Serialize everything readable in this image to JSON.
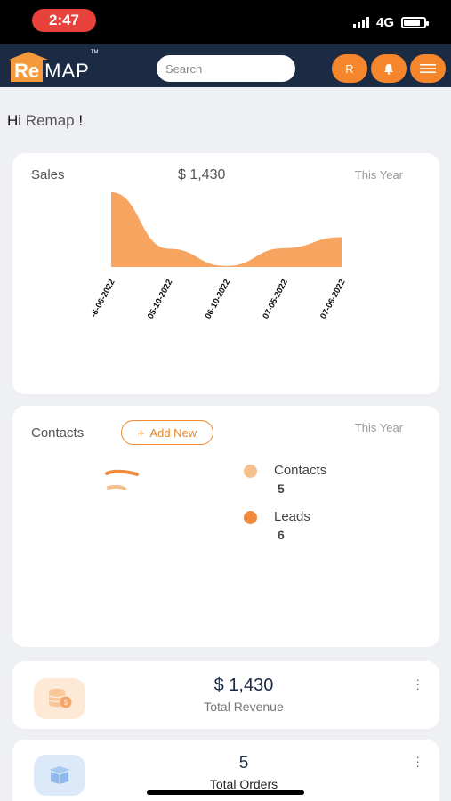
{
  "status_bar": {
    "time": "2:47",
    "network": "4G"
  },
  "header": {
    "logo_prefix": "Re",
    "logo_suffix": "MAP",
    "logo_tm": "TM",
    "search_placeholder": "Search",
    "avatar_label": "R"
  },
  "greeting": {
    "hi": "Hi",
    "name": "Remap",
    "exclamation": "!"
  },
  "sales": {
    "title": "Sales",
    "total": "$ 1,430",
    "period": "This Year"
  },
  "contacts": {
    "title": "Contacts",
    "add_button": "Add New",
    "add_icon": "+",
    "period": "This Year",
    "legend": [
      {
        "label": "Contacts",
        "count": "5",
        "color": "#f6c08c"
      },
      {
        "label": "Leads",
        "count": "6",
        "color": "#f08a3c"
      }
    ]
  },
  "revenue_card": {
    "value": "$ 1,430",
    "label": "Total Revenue",
    "icon": "coins-icon"
  },
  "orders_card": {
    "value": "5",
    "label": "Total Orders",
    "icon": "box-icon"
  },
  "colors": {
    "accent": "#f5862b",
    "header": "#1c2b44",
    "chart_fill": "#f8a461"
  },
  "chart_data": {
    "type": "area",
    "x": [
      "-6-06-2022",
      "05-10-2022",
      "06-10-2022",
      "07-05-2022",
      "07-06-2022"
    ],
    "y": [
      1430,
      350,
      20,
      360,
      570
    ],
    "ylim": [
      0,
      1430
    ],
    "grid": false,
    "title": "",
    "xlabel": "",
    "ylabel": ""
  }
}
